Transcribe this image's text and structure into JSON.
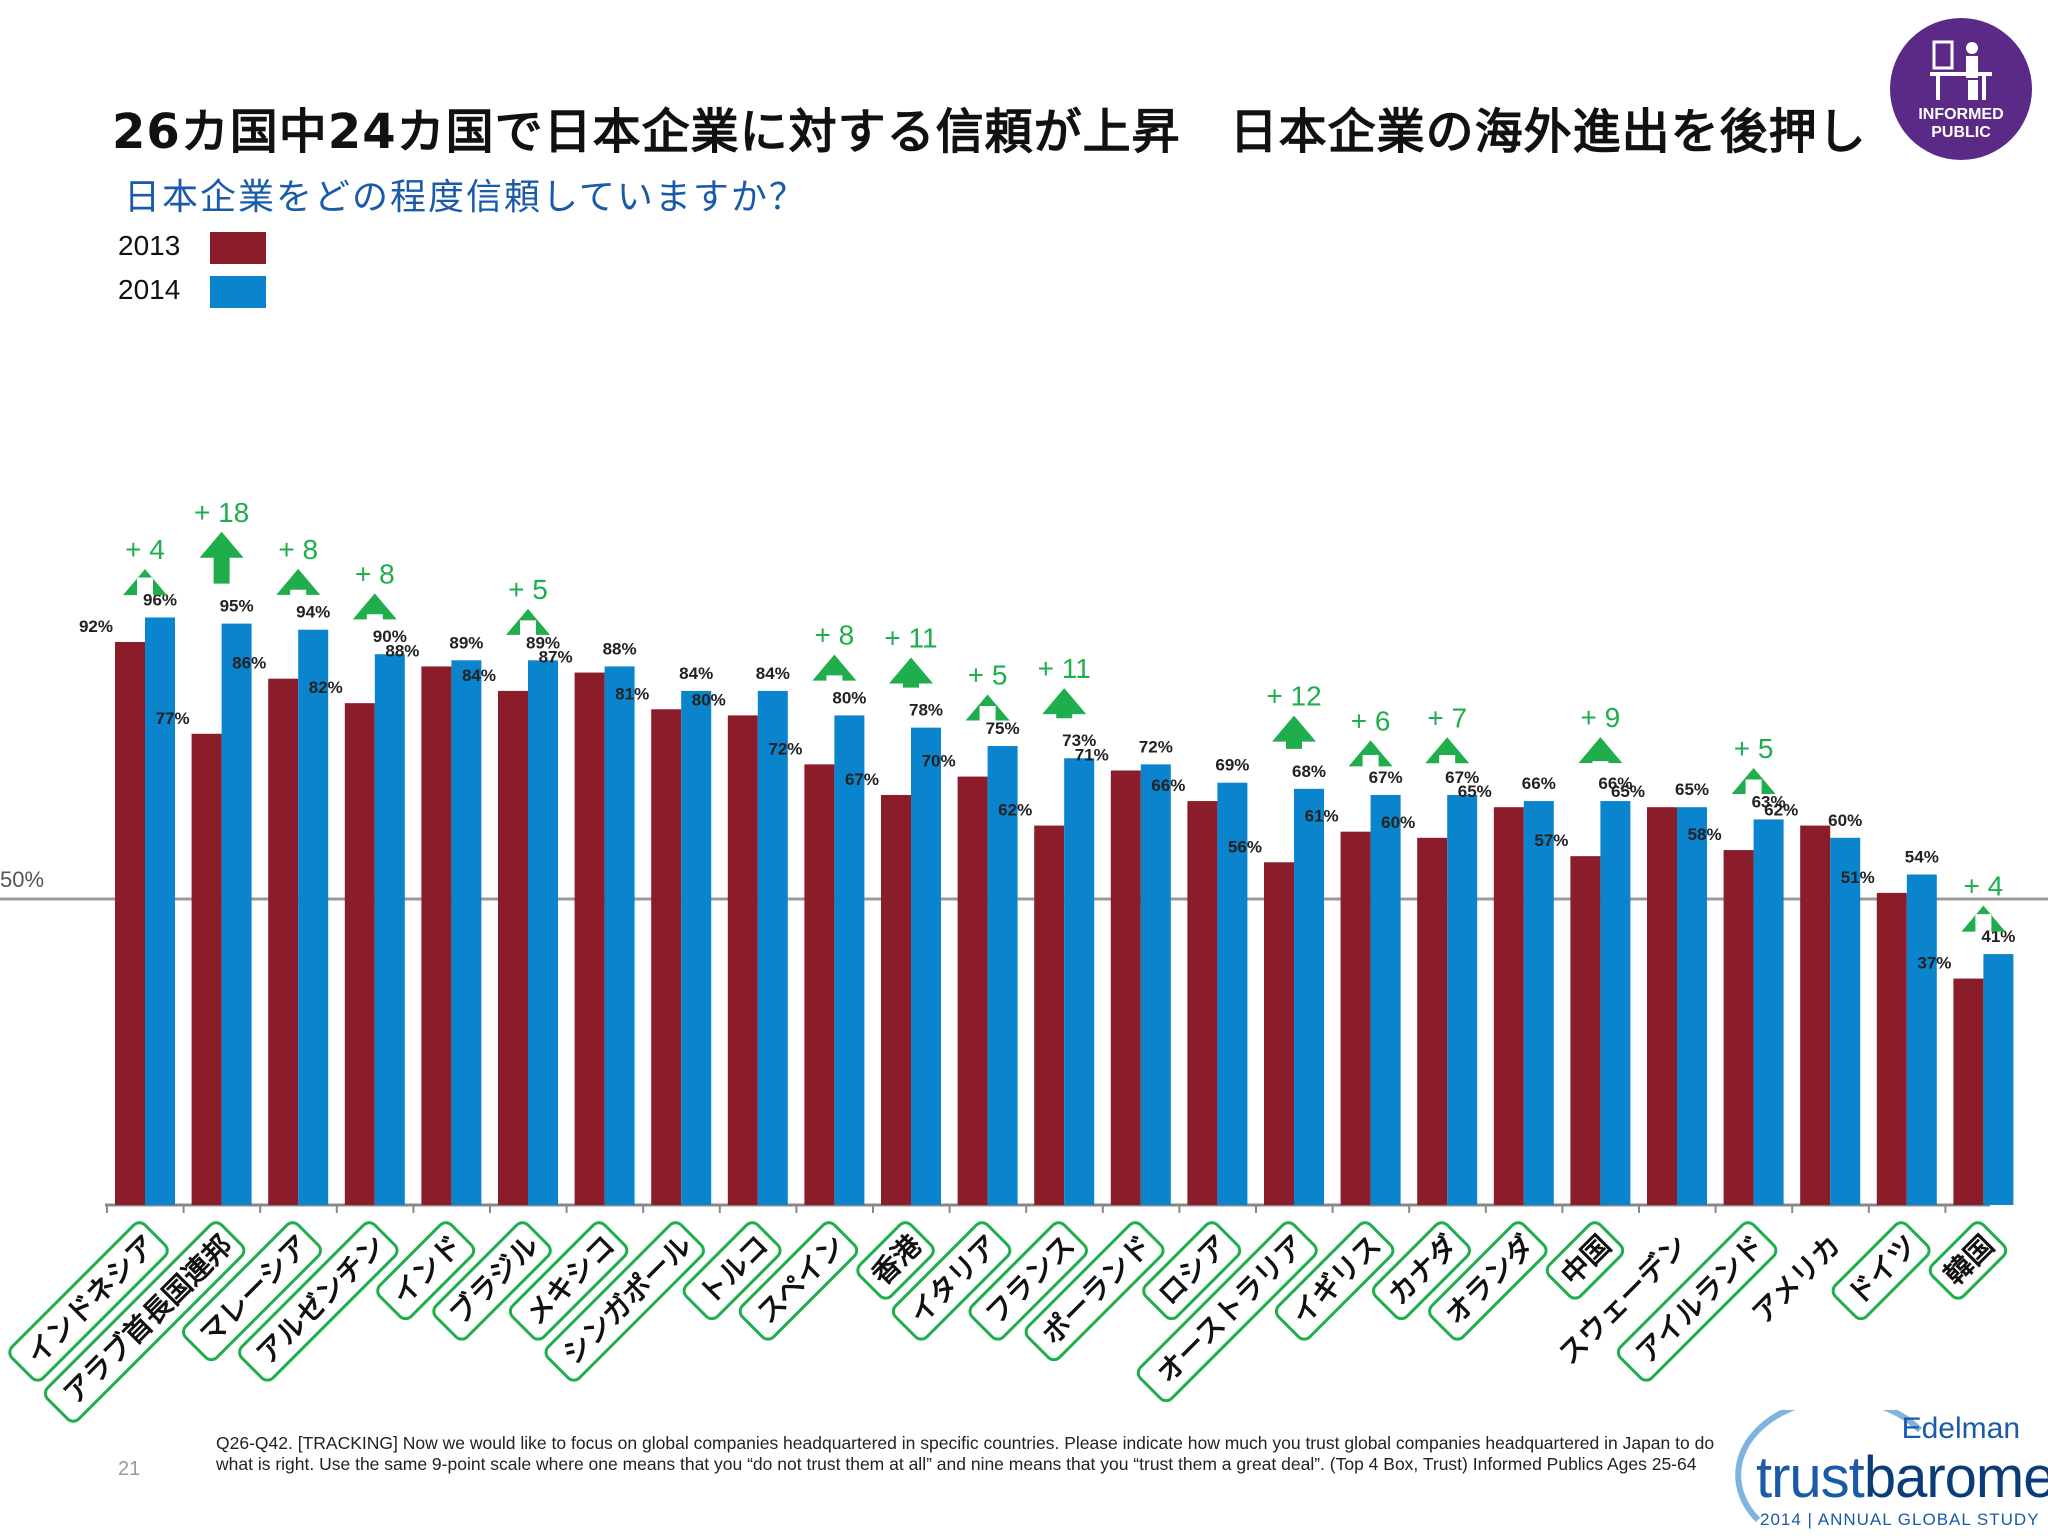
{
  "header": {
    "title": "26カ国中24カ国で日本企業に対する信頼が上昇　日本企業の海外進出を後押し",
    "subtitle": "日本企業をどの程度信頼していますか？",
    "badge": "INFORMED PUBLIC"
  },
  "legend": {
    "items": [
      {
        "label": "2013",
        "color": "#8b1c2a"
      },
      {
        "label": "2014",
        "color": "#0a84cc"
      }
    ]
  },
  "chart_data": {
    "type": "bar",
    "categories": [
      "インドネシア",
      "アラブ首長国連邦",
      "マレーシア",
      "アルゼンチン",
      "インド",
      "ブラジル",
      "メキシコ",
      "シンガポール",
      "トルコ",
      "スペイン",
      "香港",
      "イタリア",
      "フランス",
      "ポーランド",
      "ロシア",
      "オーストラリア",
      "イギリス",
      "カナダ",
      "オランダ",
      "中国",
      "スウェーデン",
      "アイルランド",
      "アメリカ",
      "ドイツ",
      "韓国"
    ],
    "series": [
      {
        "name": "2013",
        "values": [
          92,
          77,
          86,
          82,
          88,
          84,
          87,
          81,
          80,
          72,
          67,
          70,
          62,
          71,
          66,
          56,
          61,
          60,
          65,
          57,
          65,
          58,
          62,
          51,
          37
        ],
        "color": "#8b1c2a"
      },
      {
        "name": "2014",
        "values": [
          96,
          95,
          94,
          90,
          89,
          89,
          88,
          84,
          84,
          80,
          78,
          75,
          73,
          72,
          69,
          68,
          67,
          67,
          66,
          66,
          65,
          63,
          60,
          54,
          41
        ],
        "color": "#0a84cc"
      }
    ],
    "increases": [
      "+ 4",
      "+ 18",
      "+ 8",
      "+ 8",
      null,
      "+ 5",
      null,
      null,
      null,
      "+ 8",
      "+ 11",
      "+ 5",
      "+ 11",
      null,
      null,
      "+ 12",
      "+ 6",
      "+ 7",
      null,
      "+ 9",
      null,
      "+ 5",
      null,
      null,
      "+ 4"
    ],
    "highlighted": [
      true,
      true,
      true,
      true,
      true,
      true,
      true,
      true,
      true,
      true,
      true,
      true,
      true,
      true,
      true,
      true,
      true,
      true,
      true,
      true,
      false,
      true,
      false,
      true,
      true
    ],
    "reference_line": {
      "value": 50,
      "label": "50%"
    },
    "ylim": [
      0,
      100
    ],
    "value_suffix": "%",
    "grid": false,
    "legend_position": "top-left",
    "colors": {
      "increase": "#1fae4b",
      "label_border": "#1fae4b"
    }
  },
  "footnote": "Q26-Q42. [TRACKING] Now we would like to focus on global companies headquartered in specific countries.  Please indicate how much you trust global companies headquartered in Japan to do what is right. Use the same 9-point scale where one means that you “do not trust them at all” and nine means that you “trust them a great deal”.  (Top 4 Box, Trust) Informed Publics Ages 25-64",
  "page_number": "21",
  "logo": {
    "brand": "Edelman",
    "product_light": "trust",
    "product_bold": "barometer",
    "tagline": "2014 | ANNUAL GLOBAL STUDY"
  }
}
